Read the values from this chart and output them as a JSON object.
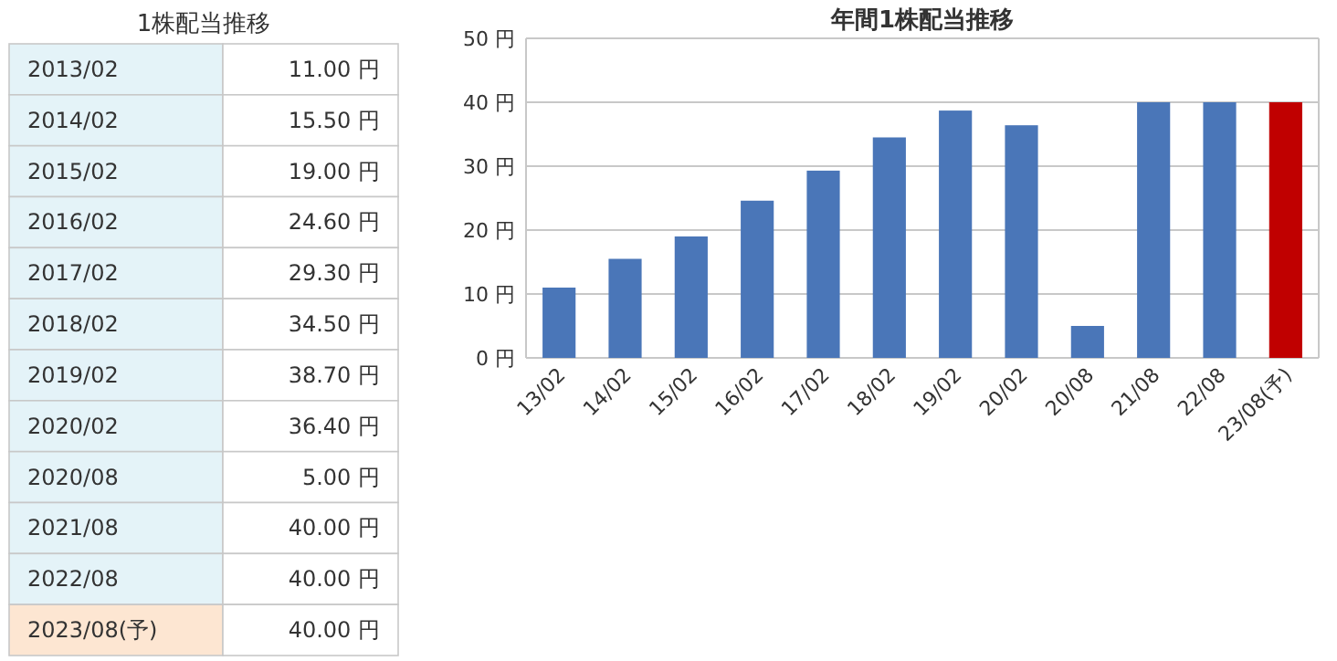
{
  "chart_data": [
    {
      "type": "other",
      "title": "1株配当推移",
      "categories": [
        "2013/02",
        "2014/02",
        "2015/02",
        "2016/02",
        "2017/02",
        "2018/02",
        "2019/02",
        "2020/02",
        "2020/08",
        "2021/08",
        "2022/08",
        "2023/08(予)"
      ],
      "annotations": [
        "11.00 円",
        "15.50 円",
        "19.00 円",
        "24.60 円",
        "29.30 円",
        "34.50 円",
        "38.70 円",
        "36.40 円",
        "5.00 円",
        "40.00 円",
        "40.00 円",
        "40.00 円"
      ]
    },
    {
      "type": "bar",
      "title": "年間1株配当推移",
      "categories": [
        "13/02",
        "14/02",
        "15/02",
        "16/02",
        "17/02",
        "18/02",
        "19/02",
        "20/02",
        "20/08",
        "21/08",
        "22/08",
        "23/08(予)"
      ],
      "values": [
        11,
        15.5,
        19,
        24.6,
        29.3,
        34.5,
        38.7,
        36.4,
        5,
        40,
        40,
        40
      ],
      "colors": [
        "#4a76b8",
        "#4a76b8",
        "#4a76b8",
        "#4a76b8",
        "#4a76b8",
        "#4a76b8",
        "#4a76b8",
        "#4a76b8",
        "#4a76b8",
        "#4a76b8",
        "#4a76b8",
        "#c00000"
      ],
      "ylim": [
        0,
        50
      ],
      "yticks": [
        {
          "value": 0,
          "label": "0 円"
        },
        {
          "value": 10,
          "label": "10 円"
        },
        {
          "value": 20,
          "label": "20 円"
        },
        {
          "value": 30,
          "label": "30 円"
        },
        {
          "value": 40,
          "label": "40 円"
        },
        {
          "value": 50,
          "label": "50 円"
        }
      ],
      "grid": "y"
    }
  ]
}
